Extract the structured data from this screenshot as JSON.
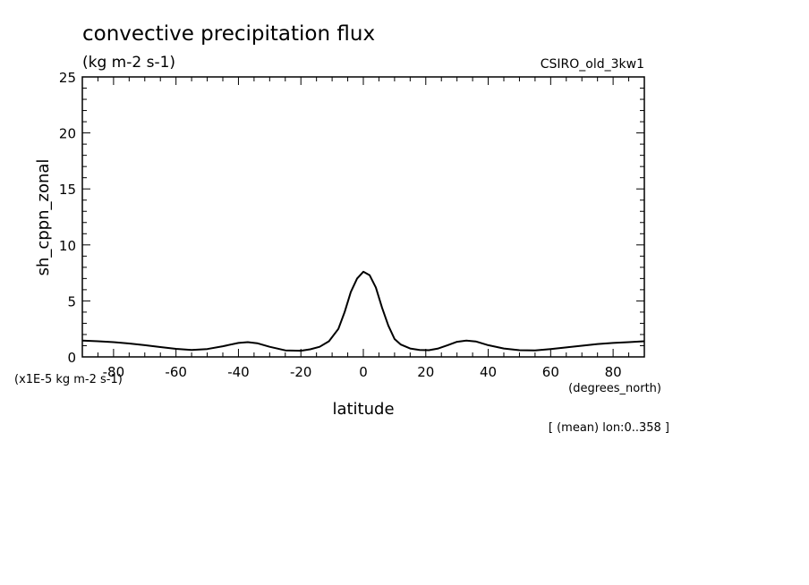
{
  "chart_data": {
    "type": "line",
    "title": "convective precipitation flux",
    "subtitle": "(kg m-2 s-1)",
    "model_label": "CSIRO_old_3kw1",
    "ylabel": "sh_cppn_zonal",
    "yunits": "(x1E-5 kg m-2 s-1)",
    "xlabel": "latitude",
    "xunits": "(degrees_north)",
    "footnote": "[ (mean) lon:0..358 ]",
    "xlim": [
      -90,
      90
    ],
    "ylim": [
      0,
      25
    ],
    "xticks": [
      -80,
      -60,
      -40,
      -20,
      0,
      20,
      40,
      60,
      80
    ],
    "xtick_labels": [
      "-80",
      "-60",
      "-40",
      "-20",
      "0",
      "20",
      "40",
      "60",
      "80"
    ],
    "yticks": [
      0,
      5,
      10,
      15,
      20,
      25
    ],
    "ytick_labels": [
      "0",
      "5",
      "10",
      "15",
      "20",
      "25"
    ],
    "grid": false,
    "series": [
      {
        "x": [
          -90,
          -85,
          -80,
          -75,
          -70,
          -65,
          -60,
          -55,
          -50,
          -45,
          -40,
          -37,
          -34,
          -30,
          -25,
          -20,
          -17,
          -14,
          -11,
          -8,
          -6,
          -4,
          -2,
          0,
          2,
          4,
          6,
          8,
          10,
          12,
          15,
          18,
          21,
          24,
          27,
          30,
          33,
          36,
          40,
          45,
          50,
          55,
          60,
          65,
          70,
          75,
          80,
          85,
          90
        ],
        "values": [
          1.45,
          1.4,
          1.32,
          1.2,
          1.05,
          0.88,
          0.72,
          0.62,
          0.7,
          0.95,
          1.25,
          1.32,
          1.22,
          0.9,
          0.58,
          0.55,
          0.68,
          0.9,
          1.4,
          2.5,
          4.0,
          5.8,
          7.0,
          7.6,
          7.3,
          6.2,
          4.4,
          2.8,
          1.6,
          1.1,
          0.75,
          0.62,
          0.6,
          0.75,
          1.05,
          1.35,
          1.45,
          1.38,
          1.05,
          0.75,
          0.6,
          0.58,
          0.7,
          0.85,
          1.0,
          1.15,
          1.25,
          1.32,
          1.4
        ]
      }
    ]
  }
}
